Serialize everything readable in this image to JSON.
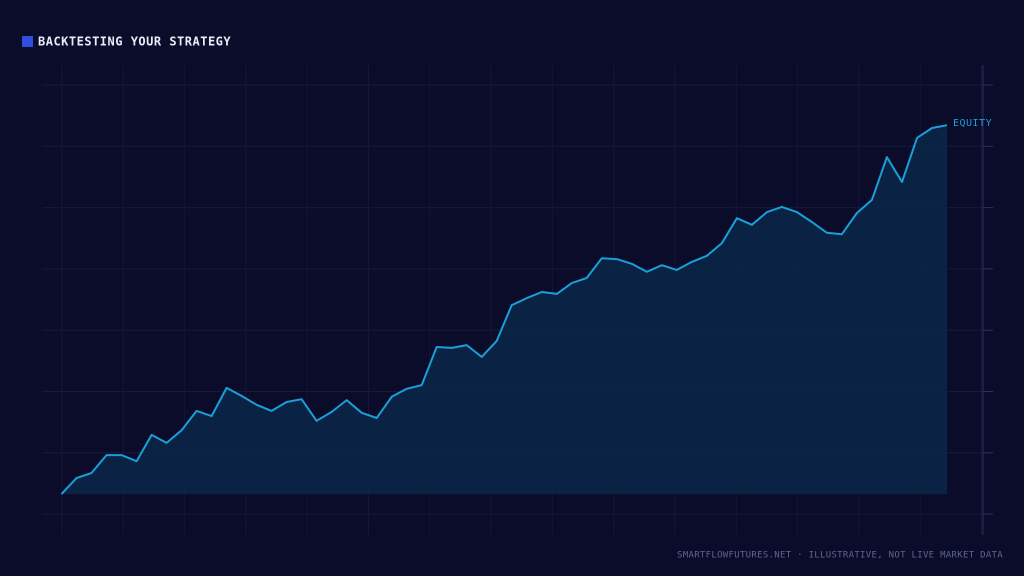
{
  "chart_data": {
    "type": "area",
    "title": "BACKTESTING YOUR STRATEGY",
    "footer": "SMARTFLOWFUTURES.NET · ILLUSTRATIVE, NOT LIVE MARKET DATA",
    "legend_color": "#2f4fe0",
    "grid": true,
    "x": [
      1,
      2,
      3,
      4,
      5,
      6,
      7,
      8,
      9,
      10,
      11,
      12,
      13,
      14,
      15,
      16,
      17,
      18,
      19,
      20,
      21,
      22,
      23,
      24,
      25,
      26,
      27,
      28,
      29,
      30,
      31,
      32,
      33,
      34,
      35,
      36,
      37,
      38,
      39,
      40,
      41,
      42,
      43,
      44,
      45,
      46,
      47,
      48,
      49,
      50,
      51,
      52,
      53,
      54,
      55,
      56,
      57,
      58,
      59,
      60
    ],
    "xlim": [
      -0.3,
      62.4
    ],
    "ylim": [
      0,
      100
    ],
    "series": [
      {
        "name": "EQUITY",
        "color": "#1a9fd8",
        "fill": "#0b2748",
        "values": [
          8.7,
          12.1,
          13.2,
          17.0,
          17.0,
          15.7,
          21.3,
          19.6,
          22.3,
          26.4,
          25.3,
          31.3,
          29.6,
          27.7,
          26.4,
          28.3,
          28.9,
          24.3,
          26.2,
          28.7,
          26.0,
          24.9,
          29.4,
          31.1,
          31.9,
          40.0,
          39.8,
          40.4,
          37.9,
          41.3,
          48.9,
          50.4,
          51.7,
          51.3,
          53.6,
          54.7,
          58.9,
          58.7,
          57.7,
          56.0,
          57.4,
          56.4,
          58.1,
          59.4,
          62.1,
          67.4,
          66.0,
          68.7,
          69.8,
          68.7,
          66.6,
          64.3,
          64.0,
          68.5,
          71.3,
          80.4,
          75.1,
          84.5,
          86.6,
          87.2
        ]
      }
    ]
  }
}
